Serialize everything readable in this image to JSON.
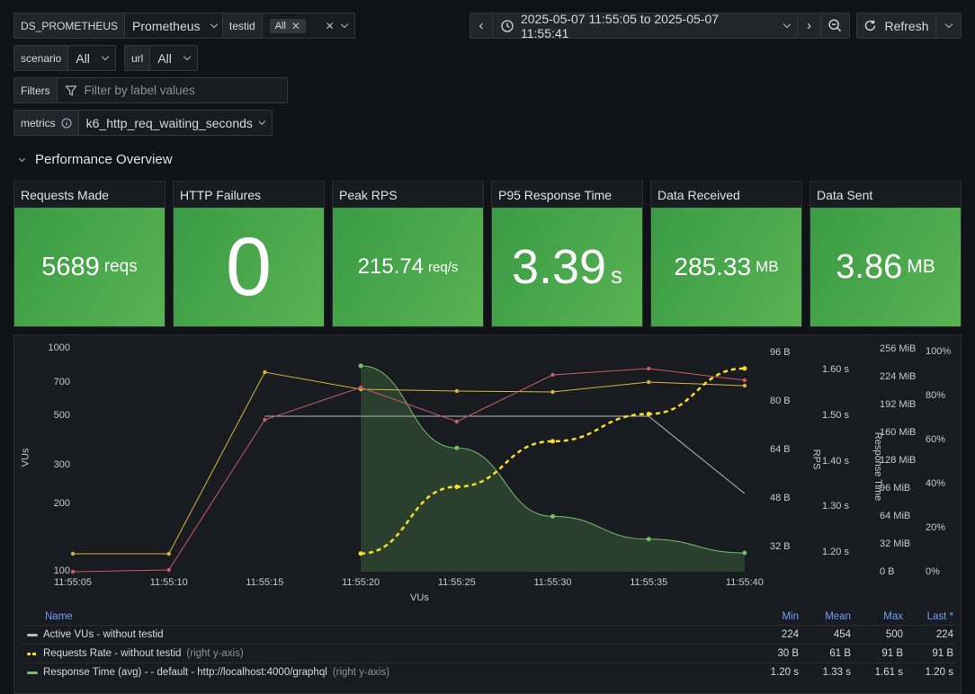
{
  "vars": {
    "ds": {
      "label": "DS_PROMETHEUS",
      "value": "Prometheus"
    },
    "testid": {
      "label": "testid",
      "chip": "All"
    },
    "scenario": {
      "label": "scenario",
      "value": "All"
    },
    "url": {
      "label": "url",
      "value": "All"
    },
    "filters": {
      "label": "Filters",
      "placeholder": "Filter by label values"
    },
    "metrics": {
      "label": "metrics",
      "value": "k6_http_req_waiting_seconds"
    }
  },
  "toolbar": {
    "time_range": "2025-05-07 11:55:05 to 2025-05-07 11:55:41",
    "refresh_label": "Refresh"
  },
  "row_title": "Performance Overview",
  "stats": [
    {
      "title": "Requests Made",
      "value": "5689",
      "unit": "reqs"
    },
    {
      "title": "HTTP Failures",
      "value": "0",
      "unit": ""
    },
    {
      "title": "Peak RPS",
      "value": "215.74",
      "unit": "req/s"
    },
    {
      "title": "P95 Response Time",
      "value": "3.39",
      "unit": "s"
    },
    {
      "title": "Data Received",
      "value": "285.33",
      "unit": "MB"
    },
    {
      "title": "Data Sent",
      "value": "3.86",
      "unit": "MB"
    }
  ],
  "colors": {
    "green": "#73bf69",
    "yellow": "#fade2a",
    "red": "#f2495c",
    "orange": "#ff9830",
    "gray": "#b8b9c4"
  },
  "chart_data": {
    "type": "line",
    "xlabel": "VUs",
    "x": [
      "11:55:05",
      "11:55:10",
      "11:55:15",
      "11:55:20",
      "11:55:25",
      "11:55:30",
      "11:55:35",
      "11:55:40"
    ],
    "left_axis": {
      "label": "VUs",
      "ticks": [
        "1000",
        "700",
        "500",
        "300",
        "200",
        "100"
      ]
    },
    "bytes_axis": {
      "ticks": [
        "96 B",
        "80 B",
        "64 B",
        "48 B",
        "32 B"
      ]
    },
    "rps_axis": {
      "label": "RPS",
      "ticks": [
        "1.60 s",
        "1.50 s",
        "1.40 s",
        "1.30 s",
        "1.20 s"
      ]
    },
    "response_axis": {
      "label": "Response Time",
      "ticks": [
        "256 MiB",
        "224 MiB",
        "192 MiB",
        "160 MiB",
        "128 MiB",
        "96 MiB",
        "64 MiB",
        "32 MiB",
        "0 B"
      ]
    },
    "percent_axis": {
      "ticks": [
        "100%",
        "80%",
        "60%",
        "40%",
        "20%",
        "0%"
      ]
    },
    "series": [
      {
        "name": "Active VUs - without testid",
        "color": "#b8b9c4",
        "values": [
          null,
          null,
          500,
          500,
          500,
          500,
          500,
          224
        ]
      },
      {
        "name": "Requests Rate - without testid",
        "color": "#fade2a",
        "values": [
          null,
          null,
          null,
          30,
          52,
          67,
          76,
          91
        ]
      },
      {
        "name": "Response Time (avg) - - default - http://localhost:4000/graphql",
        "color": "#73bf69",
        "values": [
          null,
          null,
          null,
          1.61,
          1.43,
          1.28,
          1.23,
          1.2
        ]
      }
    ]
  },
  "legend": {
    "headers": {
      "name": "Name",
      "min": "Min",
      "mean": "Mean",
      "max": "Max",
      "last": "Last *"
    },
    "rows": [
      {
        "name": "Active VUs - without testid",
        "suffix": "",
        "color": "#b8b9c4",
        "min": "224",
        "mean": "454",
        "max": "500",
        "last": "224"
      },
      {
        "name": "Requests Rate - without testid",
        "suffix": "(right y-axis)",
        "color": "#fade2a",
        "min": "30 B",
        "mean": "61 B",
        "max": "91 B",
        "last": "91 B"
      },
      {
        "name": "Response Time (avg) - - default - http://localhost:4000/graphql",
        "suffix": "(right y-axis)",
        "color": "#73bf69",
        "min": "1.20 s",
        "mean": "1.33 s",
        "max": "1.61 s",
        "last": "1.20 s"
      }
    ]
  }
}
